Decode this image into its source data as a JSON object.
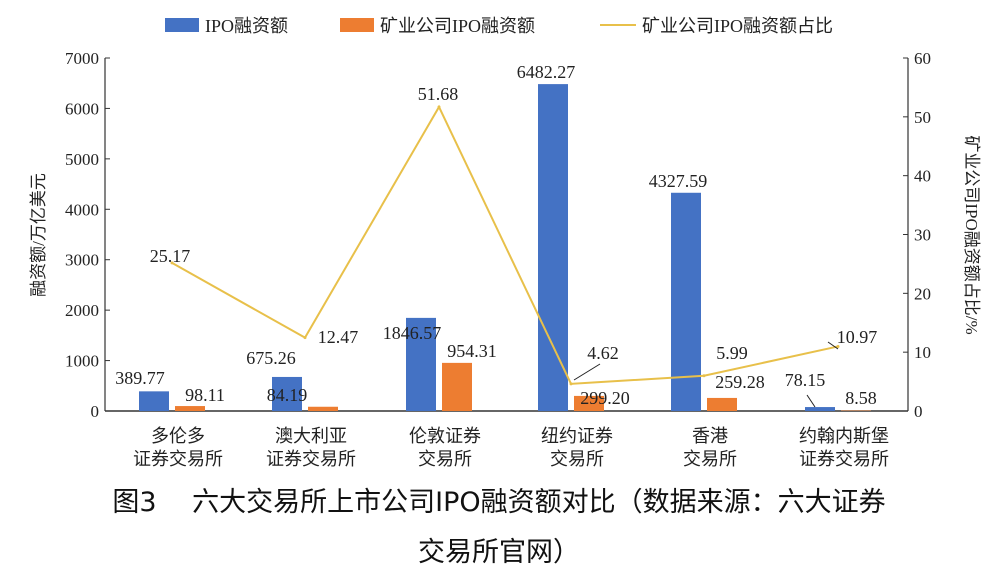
{
  "chart_data": {
    "type": "bar+line",
    "categories": [
      [
        "多伦多",
        "证券交易所"
      ],
      [
        "澳大利亚",
        "证券交易所"
      ],
      [
        "伦敦证券",
        "交易所"
      ],
      [
        "纽约证券",
        "交易所"
      ],
      [
        "香港",
        "交易所"
      ],
      [
        "约翰内斯堡",
        "证券交易所"
      ]
    ],
    "series": [
      {
        "name": "IPO融资额",
        "type": "bar",
        "axis": "left",
        "color": "#4472C4",
        "values": [
          389.77,
          675.26,
          1846.57,
          6482.27,
          4327.59,
          78.15
        ],
        "labels": [
          "389.77",
          "675.26",
          "1846.57",
          "6482.27",
          "4327.59",
          "78.15"
        ]
      },
      {
        "name": "矿业公司IPO融资额",
        "type": "bar",
        "axis": "left",
        "color": "#ED7D31",
        "values": [
          98.11,
          84.19,
          954.31,
          299.2,
          259.28,
          8.58
        ],
        "labels": [
          "98.11",
          "84.19",
          "954.31",
          "299.20",
          "259.28",
          "8.58"
        ]
      },
      {
        "name": "矿业公司IPO融资额占比",
        "type": "line",
        "axis": "right",
        "color": "#E8C04A",
        "values": [
          25.17,
          12.47,
          51.68,
          4.62,
          5.99,
          10.97
        ],
        "labels": [
          "25.17",
          "12.47",
          "51.68",
          "4.62",
          "5.99",
          "10.97"
        ]
      }
    ],
    "ylabel": "融资额/万亿美元",
    "y2label": "矿业公司IPO融资额占比/%",
    "ylim": [
      0,
      7000
    ],
    "yticks": [
      0,
      1000,
      2000,
      3000,
      4000,
      5000,
      6000,
      7000
    ],
    "y2lim": [
      0,
      60
    ],
    "y2ticks": [
      0,
      10,
      20,
      30,
      40,
      50,
      60
    ],
    "legend": "top",
    "grid": false
  },
  "caption": {
    "line1": "图3　 六大交易所上市公司IPO融资额对比（数据来源：六大证券",
    "line2": "交易所官网）"
  }
}
